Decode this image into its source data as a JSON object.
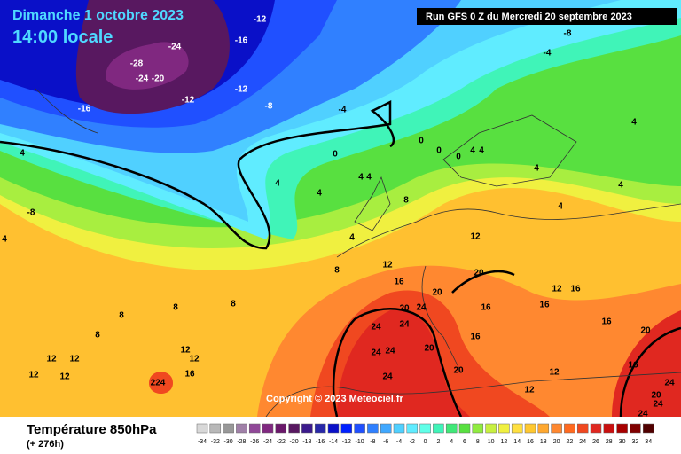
{
  "header": {
    "date": "Dimanche 1 octobre 2023",
    "time": "14:00 locale",
    "run": "Run GFS 0 Z du Mercredi 20 septembre 2023"
  },
  "footer": {
    "title": "Température 850hPa",
    "lead": "(+ 276h)",
    "copyright": "Copyright © 2023 Meteociel.fr"
  },
  "legend": {
    "values": [
      -34,
      -32,
      -30,
      -28,
      -26,
      -24,
      -22,
      -20,
      -18,
      -16,
      -14,
      -12,
      -10,
      -8,
      -6,
      -4,
      -2,
      0,
      2,
      4,
      6,
      8,
      10,
      12,
      14,
      16,
      18,
      20,
      22,
      24,
      26,
      28,
      30,
      32,
      34
    ],
    "colors": [
      "#d8d8d8",
      "#b8b8b8",
      "#989898",
      "#a080a8",
      "#904898",
      "#802880",
      "#6a186a",
      "#581860",
      "#3c1a8c",
      "#2828a8",
      "#0a10c8",
      "#0020ff",
      "#2050ff",
      "#3080ff",
      "#40a8ff",
      "#50d0ff",
      "#60ecff",
      "#60ffe8",
      "#40f4b8",
      "#40e878",
      "#58e040",
      "#90ec40",
      "#c8f040",
      "#f0f040",
      "#ffe040",
      "#ffc830",
      "#ffa830",
      "#ff8830",
      "#ff6a20",
      "#f04820",
      "#e02820",
      "#c81010",
      "#a80000",
      "#800000",
      "#500000"
    ]
  },
  "contour_labels": [
    "-16",
    "-12",
    "-16",
    "-24",
    "-28",
    "-24",
    "-20",
    "-12",
    "-12",
    "-8",
    "-4",
    "-8",
    "-4",
    "0",
    "0",
    "4",
    "4",
    "4",
    "4",
    "4",
    "8",
    "4",
    "8",
    "4",
    "4",
    "4",
    "12",
    "12",
    "16",
    "20",
    "20",
    "20",
    "24",
    "24",
    "24",
    "20",
    "24",
    "24",
    "16",
    "20",
    "24",
    "12",
    "12",
    "12",
    "12",
    "12",
    "12",
    "224",
    "16",
    "12",
    "12",
    "16",
    "12",
    "16",
    "16",
    "20",
    "24",
    "8",
    "8",
    "8",
    "8",
    "-8",
    "4",
    "0",
    "0",
    "4",
    "4",
    "4",
    "16",
    "16",
    "20",
    "24",
    "24"
  ]
}
